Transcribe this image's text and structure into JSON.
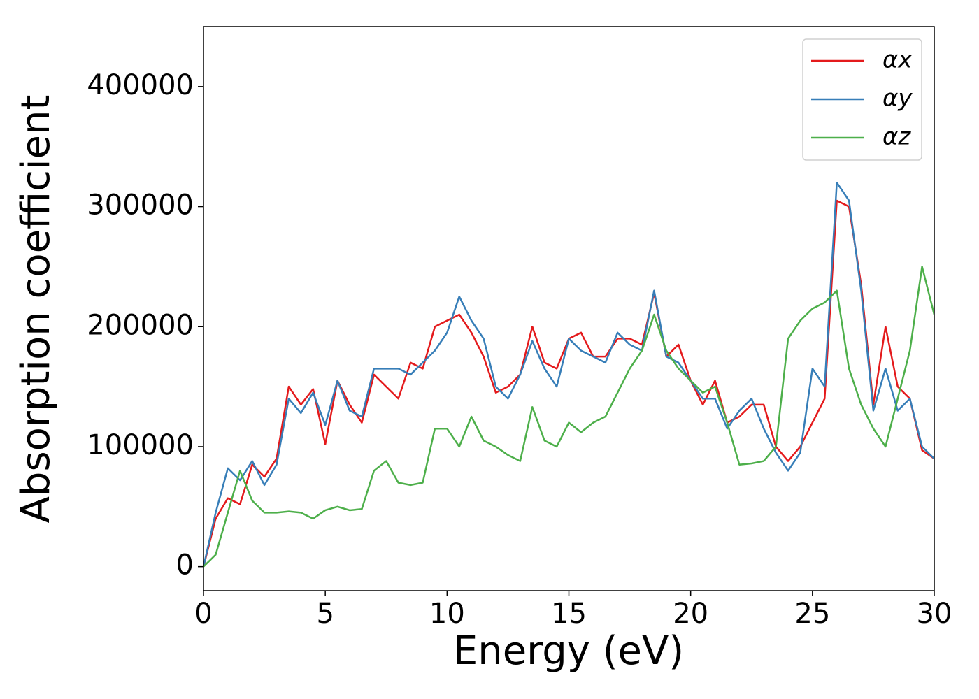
{
  "chart_data": {
    "type": "line",
    "xlabel": "Energy (eV)",
    "ylabel": "Absorption coefficient",
    "x": [
      0,
      0.5,
      1,
      1.5,
      2,
      2.5,
      3,
      3.5,
      4,
      4.5,
      5,
      5.5,
      6,
      6.5,
      7,
      7.5,
      8,
      8.5,
      9,
      9.5,
      10,
      10.5,
      11,
      11.5,
      12,
      12.5,
      13,
      13.5,
      14,
      14.5,
      15,
      15.5,
      16,
      16.5,
      17,
      17.5,
      18,
      18.5,
      19,
      19.5,
      20,
      20.5,
      21,
      21.5,
      22,
      22.5,
      23,
      23.5,
      24,
      24.5,
      25,
      25.5,
      26,
      26.5,
      27,
      27.5,
      28,
      28.5,
      29,
      29.5,
      30
    ],
    "series": [
      {
        "name": "αx",
        "color": "#e41a1c",
        "values": [
          0,
          40000,
          57000,
          52000,
          85000,
          75000,
          90000,
          150000,
          135000,
          148000,
          102000,
          155000,
          135000,
          120000,
          160000,
          150000,
          140000,
          170000,
          165000,
          200000,
          205000,
          210000,
          195000,
          175000,
          145000,
          150000,
          160000,
          200000,
          170000,
          165000,
          190000,
          195000,
          175000,
          175000,
          190000,
          190000,
          185000,
          228000,
          175000,
          185000,
          155000,
          135000,
          155000,
          120000,
          125000,
          135000,
          135000,
          100000,
          88000,
          100000,
          120000,
          140000,
          305000,
          300000,
          235000,
          135000,
          200000,
          150000,
          140000,
          97000,
          90000
        ]
      },
      {
        "name": "αy",
        "color": "#377eb8",
        "values": [
          0,
          45000,
          82000,
          72000,
          88000,
          68000,
          85000,
          140000,
          128000,
          145000,
          118000,
          155000,
          130000,
          125000,
          165000,
          165000,
          165000,
          160000,
          170000,
          180000,
          195000,
          225000,
          205000,
          190000,
          150000,
          140000,
          160000,
          188000,
          165000,
          150000,
          190000,
          180000,
          175000,
          170000,
          195000,
          185000,
          180000,
          230000,
          175000,
          170000,
          155000,
          140000,
          140000,
          115000,
          130000,
          140000,
          115000,
          95000,
          80000,
          95000,
          165000,
          150000,
          320000,
          305000,
          230000,
          130000,
          165000,
          130000,
          140000,
          100000,
          90000
        ]
      },
      {
        "name": "αz",
        "color": "#4daf4a",
        "values": [
          0,
          10000,
          45000,
          80000,
          55000,
          45000,
          45000,
          46000,
          45000,
          40000,
          47000,
          50000,
          47000,
          48000,
          80000,
          88000,
          70000,
          68000,
          70000,
          115000,
          115000,
          100000,
          125000,
          105000,
          100000,
          93000,
          88000,
          133000,
          105000,
          100000,
          120000,
          112000,
          120000,
          125000,
          145000,
          165000,
          180000,
          210000,
          180000,
          165000,
          155000,
          145000,
          150000,
          120000,
          85000,
          86000,
          88000,
          100000,
          190000,
          205000,
          215000,
          220000,
          230000,
          165000,
          135000,
          115000,
          100000,
          140000,
          180000,
          250000,
          210000
        ]
      }
    ],
    "xlim": [
      0,
      30
    ],
    "ylim": [
      -20000,
      450000
    ],
    "xticks": [
      0,
      5,
      10,
      15,
      20,
      25,
      30
    ],
    "yticks": [
      0,
      100000,
      200000,
      300000,
      400000
    ],
    "grid": false,
    "legend": "upper right"
  }
}
